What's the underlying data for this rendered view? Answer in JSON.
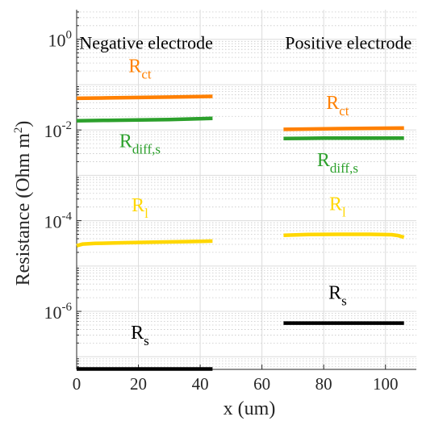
{
  "chart_data": {
    "type": "line",
    "xlabel": "x (um)",
    "ylabel": "Resistance (Ohm m",
    "ylabel_sup": "2",
    "ylabel_close": ")",
    "xlim": [
      0,
      110
    ],
    "ylim": [
      5.25e-08,
      4.5
    ],
    "yscale": "log",
    "grid": true,
    "x_ticks": [
      {
        "value": 0,
        "label": "0"
      },
      {
        "value": 20,
        "label": "20"
      },
      {
        "value": 40,
        "label": "40"
      },
      {
        "value": 60,
        "label": "60"
      },
      {
        "value": 80,
        "label": "80"
      },
      {
        "value": 100,
        "label": "100"
      }
    ],
    "y_ticks": [
      {
        "value": 1e-06,
        "base": "10",
        "exp": "-6"
      },
      {
        "value": 0.0001,
        "base": "10",
        "exp": "-4"
      },
      {
        "value": 0.01,
        "base": "10",
        "exp": "-2"
      },
      {
        "value": 1,
        "base": "10",
        "exp": "0"
      }
    ],
    "region_labels": [
      {
        "text": "Negative electrode",
        "x": 22.5,
        "y": 0.62
      },
      {
        "text": "Positive electrode",
        "x": 88,
        "y": 0.62
      }
    ],
    "series": [
      {
        "name": "R",
        "sub": "ct",
        "color": "#ff8000",
        "label_x": 20.5,
        "label_y": 0.19,
        "x": [
          0,
          10,
          20,
          30,
          44
        ],
        "y": [
          0.05,
          0.051,
          0.052,
          0.053,
          0.055
        ]
      },
      {
        "name": "R",
        "sub": "diff,s",
        "color": "#2ca02c",
        "label_x": 20.5,
        "label_y": 0.0042,
        "x": [
          0,
          10,
          20,
          30,
          44
        ],
        "y": [
          0.016,
          0.0163,
          0.0166,
          0.017,
          0.018
        ]
      },
      {
        "name": "R",
        "sub": "l",
        "color": "#ffd700",
        "label_x": 20.5,
        "label_y": 0.00016,
        "x": [
          0,
          2,
          6,
          15,
          25,
          35,
          44
        ],
        "y": [
          2.8e-05,
          3.05e-05,
          3.15e-05,
          3.25e-05,
          3.35e-05,
          3.45e-05,
          3.55e-05
        ]
      },
      {
        "name": "R",
        "sub": "s",
        "color": "#000000",
        "label_x": 20.5,
        "label_y": 2.5e-07,
        "x": [
          0,
          44
        ],
        "y": [
          5.35e-08,
          5.35e-08
        ]
      },
      {
        "name": "R",
        "sub": "ct",
        "color": "#ff8000",
        "label_x": 84.5,
        "label_y": 0.029,
        "x": [
          67,
          75,
          85,
          95,
          106
        ],
        "y": [
          0.0103,
          0.0105,
          0.0107,
          0.0109,
          0.011
        ]
      },
      {
        "name": "R",
        "sub": "diff,s",
        "color": "#2ca02c",
        "label_x": 84.5,
        "label_y": 0.0016,
        "x": [
          67,
          80,
          95,
          106
        ],
        "y": [
          0.0065,
          0.0066,
          0.0066,
          0.0066
        ]
      },
      {
        "name": "R",
        "sub": "l",
        "color": "#ffd700",
        "label_x": 84.5,
        "label_y": 0.00017,
        "x": [
          67,
          75,
          85,
          95,
          102,
          104,
          106
        ],
        "y": [
          4.75e-05,
          4.95e-05,
          5e-05,
          5e-05,
          4.9e-05,
          4.7e-05,
          4.3e-05
        ]
      },
      {
        "name": "R",
        "sub": "s",
        "color": "#000000",
        "label_x": 84.5,
        "label_y": 1.9e-06,
        "x": [
          67,
          106
        ],
        "y": [
          5.5e-07,
          5.5e-07
        ]
      }
    ]
  }
}
